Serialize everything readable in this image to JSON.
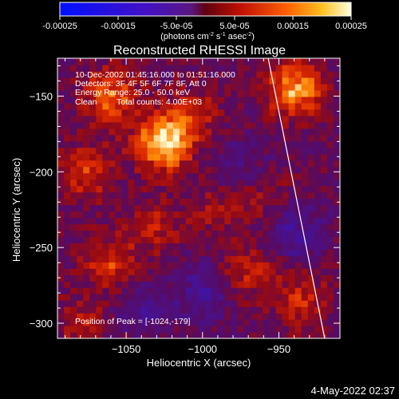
{
  "colorbar": {
    "tick_labels": [
      "-0.00025",
      "-0.00015",
      "-5.0e-05",
      "5.0e-05",
      "0.00015",
      "0.00025"
    ],
    "unit_label": "(photons cm",
    "unit_exp1": "-2",
    "unit_mid": " s",
    "unit_exp2": "-1",
    "unit_end": " asec",
    "unit_exp3": "-2",
    "unit_close": ")",
    "range": [
      -0.00025,
      0.00025
    ]
  },
  "chart_data": {
    "type": "heatmap",
    "title": "Reconstructed RHESSI Image",
    "xlabel": "Heliocentric X (arcsec)",
    "ylabel": "Heliocentric Y (arcsec)",
    "xlim": [
      -1095,
      -910
    ],
    "ylim": [
      -310,
      -125
    ],
    "x_ticks": [
      -1050,
      -1000,
      -950
    ],
    "x_tick_labels": [
      "−1050",
      "−1000",
      "−950"
    ],
    "y_ticks": [
      -150,
      -200,
      -250,
      -300
    ],
    "y_tick_labels": [
      "−150",
      "−200",
      "−250",
      "−300"
    ],
    "annotation_lines": [
      "10-Dec-2002 01:45:16.000 to 01:51:16.000",
      "Detectors: 3F 4F 5F 6F 7F 8F, Att 0",
      "Energy Range: 25.0 - 50.0 keV",
      "Clean",
      "Total counts: 4.00E+03"
    ],
    "peak_label": "Position of Peak = [-1024,-179]",
    "peak": [
      -1024,
      -179
    ],
    "limb_line": [
      [
        -957,
        -125
      ],
      [
        -920,
        -310
      ]
    ],
    "hot_spots": [
      {
        "x": -1025,
        "y": -180,
        "value": 0.00025
      },
      {
        "x": -1060,
        "y": -150,
        "value": 0.00015
      },
      {
        "x": -940,
        "y": -145,
        "value": 0.0002
      },
      {
        "x": -1075,
        "y": -200,
        "value": 0.00012
      },
      {
        "x": -1060,
        "y": -260,
        "value": 0.00012
      },
      {
        "x": -970,
        "y": -265,
        "value": 0.0001
      },
      {
        "x": -935,
        "y": -285,
        "value": 0.0001
      },
      {
        "x": -1005,
        "y": -160,
        "value": 8e-05
      },
      {
        "x": -990,
        "y": -225,
        "value": 6e-05
      },
      {
        "x": -1080,
        "y": -300,
        "value": 8e-05
      },
      {
        "x": -960,
        "y": -215,
        "value": 6e-05
      },
      {
        "x": -1030,
        "y": -235,
        "value": 8e-05
      }
    ],
    "cold_spots": [
      {
        "x": -1000,
        "y": -280,
        "value": -0.0001
      },
      {
        "x": -940,
        "y": -240,
        "value": -0.0001
      },
      {
        "x": -1040,
        "y": -290,
        "value": -8e-05
      },
      {
        "x": -975,
        "y": -195,
        "value": -6e-05
      }
    ]
  },
  "footer": {
    "timestamp": "4-May-2022 02:37"
  }
}
